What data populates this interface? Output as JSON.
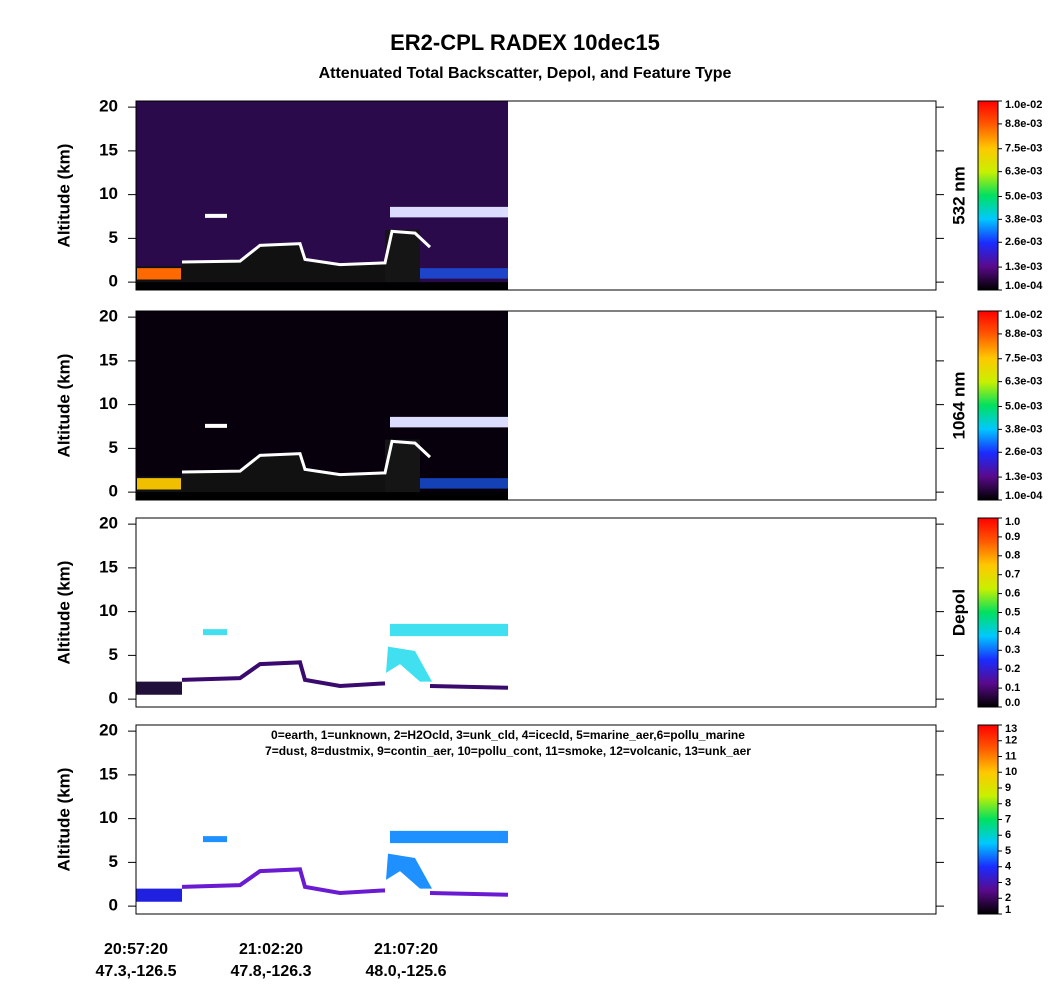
{
  "title": "ER2-CPL  RADEX  10dec15",
  "subtitle": "Attenuated Total Backscatter, Depol, and Feature Type",
  "x_labels": [
    {
      "time": "20:57:20",
      "location": "47.3,-126.5"
    },
    {
      "time": "21:02:20",
      "location": "47.8,-126.3"
    },
    {
      "time": "21:07:20",
      "location": "48.0,-125.6"
    }
  ],
  "chart_data": [
    {
      "type": "heatmap",
      "ylabel": "Altitude (km)",
      "ylim": [
        -0.9,
        20.7
      ],
      "yticks": [
        0,
        5,
        10,
        15,
        20
      ],
      "colorbar": {
        "label": "532 nm",
        "zlim": [
          0.0001,
          0.01
        ],
        "colormap": [
          "#000000",
          "#5a0a8c",
          "#1a2cff",
          "#00c8ff",
          "#00e060",
          "#c8f000",
          "#ffc800",
          "#ff5a00",
          "#ff0000"
        ],
        "ticks": [
          {
            "value": 0.0001,
            "label": "1.0e-04"
          },
          {
            "value": 0.0013,
            "label": "1.3e-03"
          },
          {
            "value": 0.0026,
            "label": "2.6e-03"
          },
          {
            "value": 0.0038,
            "label": "3.8e-03"
          },
          {
            "value": 0.005,
            "label": "5.0e-03"
          },
          {
            "value": 0.0063,
            "label": "6.3e-03"
          },
          {
            "value": 0.0075,
            "label": "7.5e-03"
          },
          {
            "value": 0.0088,
            "label": "8.8e-03"
          },
          {
            "value": 0.01,
            "label": "1.0e-02"
          }
        ]
      }
    },
    {
      "type": "heatmap",
      "ylabel": "Altitude (km)",
      "ylim": [
        -0.9,
        20.7
      ],
      "yticks": [
        0,
        5,
        10,
        15,
        20
      ],
      "colorbar": {
        "label": "1064 nm",
        "zlim": [
          0.0001,
          0.01
        ],
        "colormap": [
          "#000000",
          "#5a0a8c",
          "#1a2cff",
          "#00c8ff",
          "#00e060",
          "#c8f000",
          "#ffc800",
          "#ff5a00",
          "#ff0000"
        ],
        "ticks": [
          {
            "value": 0.0001,
            "label": "1.0e-04"
          },
          {
            "value": 0.0013,
            "label": "1.3e-03"
          },
          {
            "value": 0.0026,
            "label": "2.6e-03"
          },
          {
            "value": 0.0038,
            "label": "3.8e-03"
          },
          {
            "value": 0.005,
            "label": "5.0e-03"
          },
          {
            "value": 0.0063,
            "label": "6.3e-03"
          },
          {
            "value": 0.0075,
            "label": "7.5e-03"
          },
          {
            "value": 0.0088,
            "label": "8.8e-03"
          },
          {
            "value": 0.01,
            "label": "1.0e-02"
          }
        ]
      }
    },
    {
      "type": "heatmap",
      "ylabel": "Altitude (km)",
      "ylim": [
        -0.9,
        20.7
      ],
      "yticks": [
        0,
        5,
        10,
        15,
        20
      ],
      "colorbar": {
        "label": "Depol",
        "zlim": [
          0,
          1
        ],
        "colormap": [
          "#000000",
          "#5a0a8c",
          "#1a2cff",
          "#00c8ff",
          "#00e060",
          "#c8f000",
          "#ffc800",
          "#ff5a00",
          "#ff0000"
        ],
        "ticks": [
          {
            "value": 0,
            "label": "0.0"
          },
          0.1,
          0.2,
          0.3,
          0.4,
          0.5,
          0.6,
          0.7,
          0.8,
          0.9,
          {
            "value": 1,
            "label": "1.0"
          }
        ]
      }
    },
    {
      "type": "heatmap",
      "ylabel": "Altitude (km)",
      "ylim": [
        -0.9,
        20.7
      ],
      "yticks": [
        0,
        5,
        10,
        15,
        20
      ],
      "annotations": [
        "0=earth, 1=unknown, 2=H2Ocld, 3=unk_cld, 4=icecld, 5=marine_aer,6=pollu_marine",
        "7=dust, 8=dustmix, 9=contin_aer, 10=pollu_cont, 11=smoke, 12=volcanic, 13=unk_aer"
      ],
      "colorbar": {
        "zlim": [
          1,
          13
        ],
        "colormap": [
          "#000000",
          "#5a0a8c",
          "#1a2cff",
          "#00c8ff",
          "#00e060",
          "#c8f000",
          "#ffc800",
          "#ff5a00",
          "#ff0000"
        ],
        "ticks": [
          1,
          2,
          3,
          4,
          5,
          6,
          7,
          8,
          9,
          10,
          11,
          12,
          13
        ]
      }
    }
  ]
}
